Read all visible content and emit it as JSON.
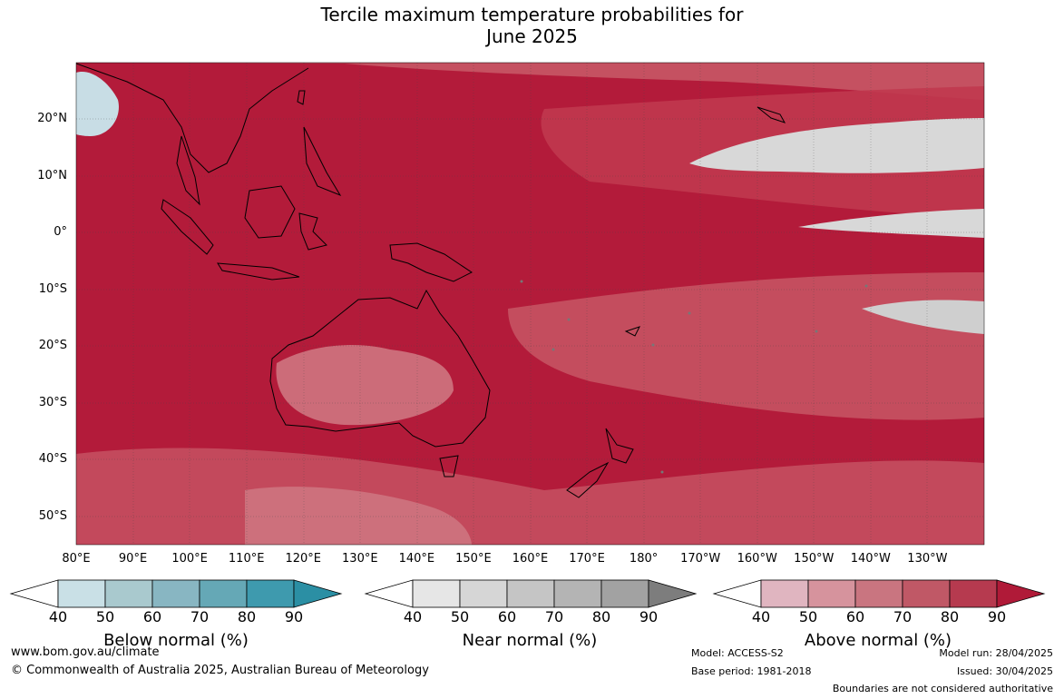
{
  "title": {
    "line1": "Tercile maximum temperature probabilities for",
    "line2": "June 2025"
  },
  "map": {
    "lon_labels": [
      "80°E",
      "90°E",
      "100°E",
      "110°E",
      "120°E",
      "130°E",
      "140°E",
      "150°E",
      "160°E",
      "170°E",
      "180°",
      "170°W",
      "160°W",
      "150°W",
      "140°W",
      "130°W"
    ],
    "lat_labels": [
      "20°N",
      "10°N",
      "0°",
      "10°S",
      "20°S",
      "30°S",
      "40°S",
      "50°S"
    ],
    "extent": {
      "lon": [
        80,
        240
      ],
      "lat": [
        -55,
        30
      ]
    },
    "colors": {
      "above_90": "#b31b3a",
      "above_80": "#c0384f",
      "above_70": "#c85a68",
      "above_60": "#d07a85",
      "near_50": "#d8d8d8",
      "below_50": "#c8dde5",
      "coast": "#000000"
    }
  },
  "legends": [
    {
      "title": "Below normal (%)",
      "ticks": [
        "40",
        "50",
        "60",
        "70",
        "80",
        "90"
      ],
      "colors": [
        "#ffffff",
        "#c9e0e6",
        "#a9c9ce",
        "#88b6c2",
        "#65a8b6",
        "#3e9aae",
        "#2b8fa4"
      ]
    },
    {
      "title": "Near normal (%)",
      "ticks": [
        "40",
        "50",
        "60",
        "70",
        "80",
        "90"
      ],
      "colors": [
        "#ffffff",
        "#e6e6e6",
        "#d6d6d6",
        "#c5c5c5",
        "#b4b4b4",
        "#a2a2a2",
        "#7d7d7d"
      ]
    },
    {
      "title": "Above normal (%)",
      "ticks": [
        "40",
        "50",
        "60",
        "70",
        "80",
        "90"
      ],
      "colors": [
        "#ffffff",
        "#e0b5c0",
        "#d6939d",
        "#c97580",
        "#c05866",
        "#b63a4f",
        "#b01a38"
      ]
    }
  ],
  "footer": {
    "url": "www.bom.gov.au/climate",
    "copyright": "© Commonwealth of Australia 2025, Australian Bureau of Meteorology",
    "model": "Model: ACCESS-S2",
    "base_period": "Base period: 1981-2018",
    "model_run": "Model run: 28/04/2025",
    "issued": "Issued: 30/04/2025",
    "disclaimer": "Boundaries are not considered authoritative"
  }
}
